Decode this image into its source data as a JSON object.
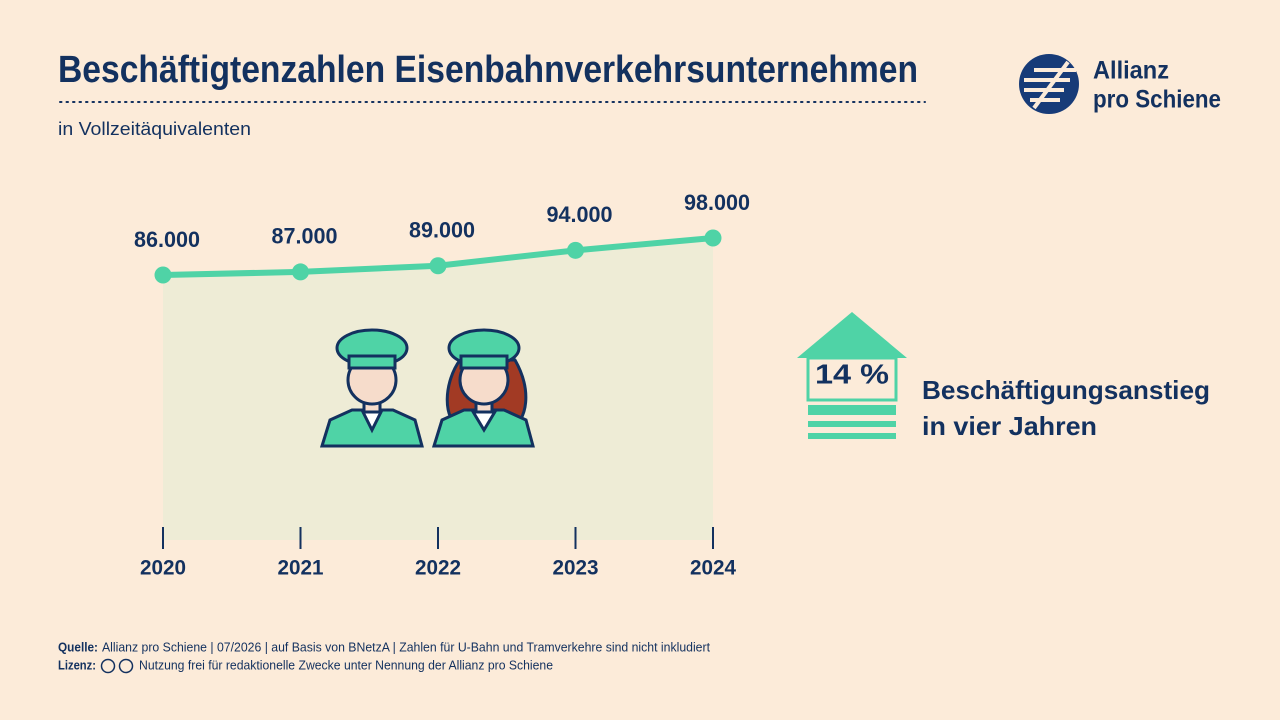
{
  "chart_data": {
    "type": "line",
    "title": "Beschäftigtenzahlen Eisenbahnverkehrsunternehmen",
    "subtitle": "in Vollzeitäquivalenten",
    "categories": [
      "2020",
      "2021",
      "2022",
      "2023",
      "2024"
    ],
    "values": [
      86000,
      87000,
      89000,
      94000,
      98000
    ],
    "value_labels": [
      "86.000",
      "87.000",
      "89.000",
      "94.000",
      "98.000"
    ],
    "color": "#4fd3a6",
    "area_color": "#eeecd6",
    "highlight_label": "14 %",
    "highlight_text": [
      "Beschäftigungsanstieg",
      "in vier Jahren"
    ]
  },
  "logo": [
    "Allianz",
    "pro Schiene"
  ],
  "footer": {
    "source_label": "Quelle:",
    "source": "Allianz pro Schiene | 07/2026 | auf Basis von BNetzA | Zahlen für U-Bahn und Tramverkehre sind nicht inkludiert",
    "license_label": "Lizenz:",
    "license": "Nutzung frei für redaktionelle Zwecke unter Nennung der Allianz pro Schiene"
  }
}
